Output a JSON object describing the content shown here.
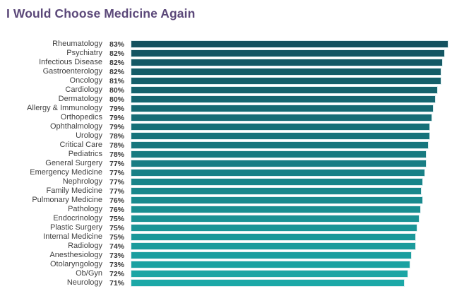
{
  "title": "I Would Choose Medicine Again",
  "chart_data": {
    "type": "bar",
    "orientation": "horizontal",
    "title": "I Would Choose Medicine Again",
    "categories": [
      "Rheumatology",
      "Psychiatry",
      "Infectious Disease",
      "Gastroenterology",
      "Oncology",
      "Cardiology",
      "Dermatology",
      "Allergy & Immunology",
      "Orthopedics",
      "Ophthalmology",
      "Urology",
      "Critical Care",
      "Pediatrics",
      "General Surgery",
      "Emergency Medicine",
      "Nephrology",
      "Family Medicine",
      "Pulmonary Medicine",
      "Pathology",
      "Endocrinology",
      "Plastic Surgery",
      "Internal Medicine",
      "Radiology",
      "Anesthesiology",
      "Otolaryngology",
      "Ob/Gyn",
      "Neurology"
    ],
    "values": [
      83,
      82,
      82,
      82,
      81,
      80,
      80,
      79,
      79,
      79,
      78,
      78,
      78,
      77,
      77,
      77,
      77,
      76,
      76,
      75,
      75,
      75,
      74,
      73,
      73,
      72,
      71
    ],
    "value_labels": [
      "83%",
      "82%",
      "82%",
      "82%",
      "81%",
      "80%",
      "80%",
      "79%",
      "79%",
      "79%",
      "78%",
      "78%",
      "78%",
      "77%",
      "77%",
      "77%",
      "77%",
      "76%",
      "76%",
      "75%",
      "75%",
      "75%",
      "74%",
      "73%",
      "73%",
      "72%",
      "71%"
    ],
    "value_suffix": "%",
    "sort": "descending",
    "grid": false,
    "legend": false,
    "axes_visible": false
  },
  "style": {
    "title_color": "#5b4879",
    "label_color": "#3f3f3f",
    "value_color": "#383838",
    "bar_gradient_start": "#13525f",
    "bar_gradient_end": "#1ca8a7",
    "bar_border_color": "#ddeef0",
    "background": "#ffffff"
  }
}
